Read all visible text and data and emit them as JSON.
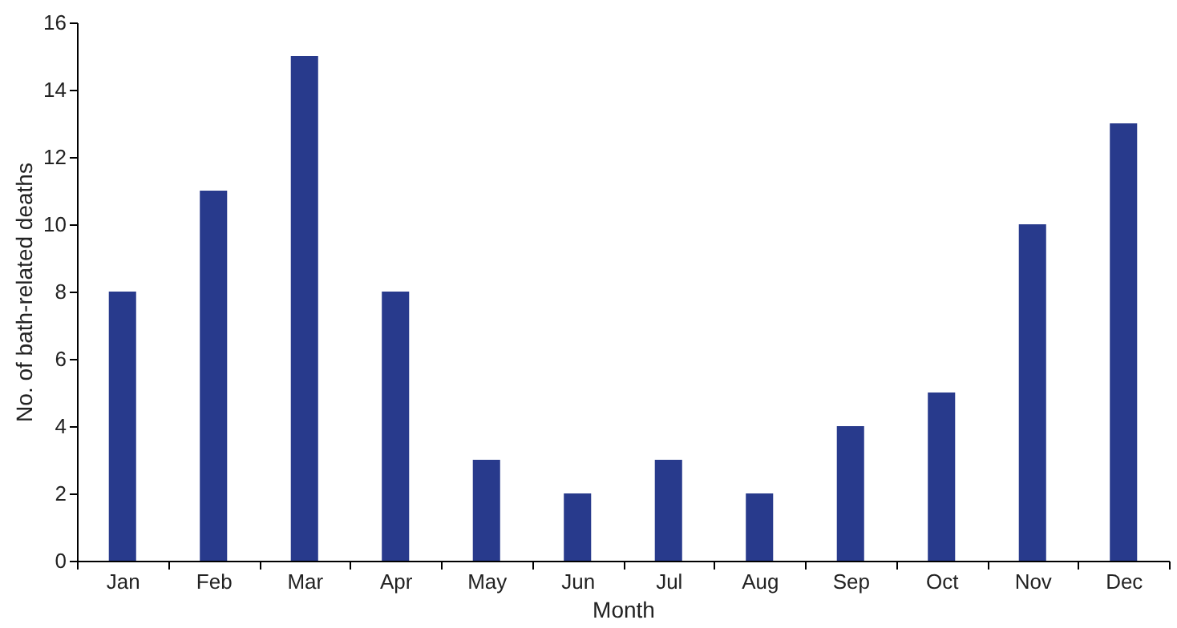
{
  "chart_data": {
    "type": "bar",
    "xlabel": "Month",
    "ylabel": "No. of bath-related deaths",
    "categories": [
      "Jan",
      "Feb",
      "Mar",
      "Apr",
      "May",
      "Jun",
      "Jul",
      "Aug",
      "Sep",
      "Oct",
      "Nov",
      "Dec"
    ],
    "values": [
      8,
      11,
      15,
      8,
      3,
      2,
      3,
      2,
      4,
      5,
      10,
      13
    ],
    "color": "#283a8c",
    "ylim": [
      0,
      16
    ],
    "yticks": [
      0,
      2,
      4,
      6,
      8,
      10,
      12,
      14,
      16
    ],
    "grid": false
  }
}
